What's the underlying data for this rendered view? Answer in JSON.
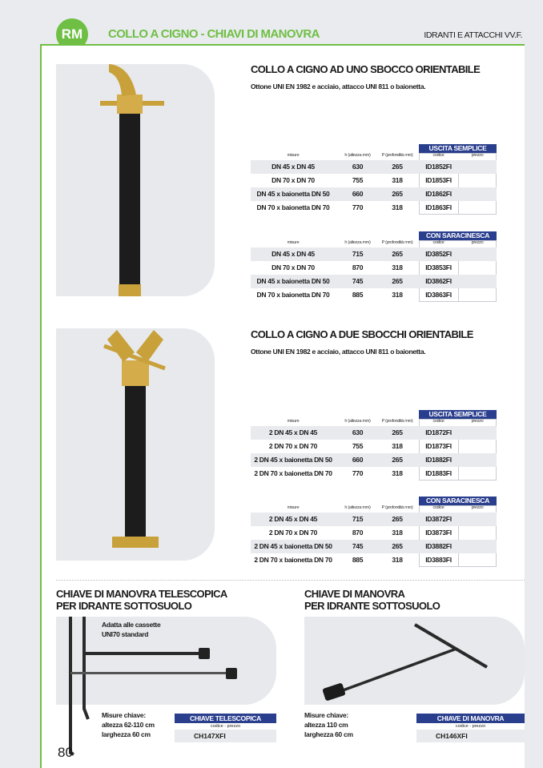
{
  "header": {
    "logo": "RM",
    "title": "COLLO A CIGNO -  CHIAVI DI MANOVRA",
    "category": "IDRANTI E ATTACCHI VV.F."
  },
  "products": [
    {
      "title": "COLLO A CIGNO AD UNO SBOCCO ORIENTABILE",
      "description": "Ottone UNI EN 1982 e acciaio, attacco UNI 811 o baionetta.",
      "tables": [
        {
          "band": "USCITA SEMPLICE",
          "headers": [
            "misure",
            "h (altezza mm)",
            "P (profondità mm)",
            "codice",
            "prezzo"
          ],
          "rows": [
            [
              "DN 45 x DN 45",
              "630",
              "265",
              "ID1852FI",
              ""
            ],
            [
              "DN 70 x DN 70",
              "755",
              "318",
              "ID1853FI",
              ""
            ],
            [
              "DN 45 x baionetta DN 50",
              "660",
              "265",
              "ID1862FI",
              ""
            ],
            [
              "DN 70 x baionetta DN 70",
              "770",
              "318",
              "ID1863FI",
              ""
            ]
          ]
        },
        {
          "band": "CON SARACINESCA",
          "headers": [
            "misure",
            "h (altezza mm)",
            "P (profondità mm)",
            "codice",
            "prezzo"
          ],
          "rows": [
            [
              "DN 45 x DN 45",
              "715",
              "265",
              "ID3852FI",
              ""
            ],
            [
              "DN 70 x DN 70",
              "870",
              "318",
              "ID3853FI",
              ""
            ],
            [
              "DN 45 x baionetta DN 50",
              "745",
              "265",
              "ID3862FI",
              ""
            ],
            [
              "DN 70 x baionetta DN 70",
              "885",
              "318",
              "ID3863FI",
              ""
            ]
          ]
        }
      ]
    },
    {
      "title": "COLLO A CIGNO A DUE SBOCCHI ORIENTABILE",
      "description": "Ottone UNI EN 1982 e acciaio, attacco UNI 811 o baionetta.",
      "tables": [
        {
          "band": "USCITA SEMPLICE",
          "headers": [
            "misure",
            "h (altezza mm)",
            "P (profondità mm)",
            "codice",
            "prezzo"
          ],
          "rows": [
            [
              "2 DN 45 x DN 45",
              "630",
              "265",
              "ID1872FI",
              ""
            ],
            [
              "2 DN 70 x DN 70",
              "755",
              "318",
              "ID1873FI",
              ""
            ],
            [
              "2 DN 45 x baionetta DN 50",
              "660",
              "265",
              "ID1882FI",
              ""
            ],
            [
              "2 DN 70 x baionetta DN 70",
              "770",
              "318",
              "ID1883FI",
              ""
            ]
          ]
        },
        {
          "band": "CON SARACINESCA",
          "headers": [
            "misure",
            "h (altezza mm)",
            "P (profondità mm)",
            "codice",
            "prezzo"
          ],
          "rows": [
            [
              "2 DN 45 x DN 45",
              "715",
              "265",
              "ID3872FI",
              ""
            ],
            [
              "2 DN 70 x DN 70",
              "870",
              "318",
              "ID3873FI",
              ""
            ],
            [
              "2 DN 45 x baionetta DN 50",
              "745",
              "265",
              "ID3882FI",
              ""
            ],
            [
              "2 DN 70 x baionetta DN 70",
              "885",
              "318",
              "ID3883FI",
              ""
            ]
          ]
        }
      ]
    }
  ],
  "keys": [
    {
      "title1": "CHIAVE DI MANOVRA TELESCOPICA",
      "title2": "PER IDRANTE SOTTOSUOLO",
      "note1": "Adatta alle cassette",
      "note2": "UNI70 standard",
      "m1": "Misure chiave:",
      "m2": "altezza 62-110 cm",
      "m3": "larghezza 60 cm",
      "band": "CHIAVE TELESCOPICA",
      "sub": "codice - prezzo",
      "code": "CH147XFI"
    },
    {
      "title1": "CHIAVE DI MANOVRA",
      "title2": "PER IDRANTE SOTTOSUOLO",
      "m1": "Misure chiave:",
      "m2": "altezza 110 cm",
      "m3": "larghezza 60 cm",
      "band": "CHIAVE DI MANOVRA",
      "sub": "codice - prezzo",
      "code": "CH146XFI"
    }
  ],
  "page_number": "80",
  "colors": {
    "brand_green": "#6fbf44",
    "table_blue": "#2a3e8e"
  }
}
